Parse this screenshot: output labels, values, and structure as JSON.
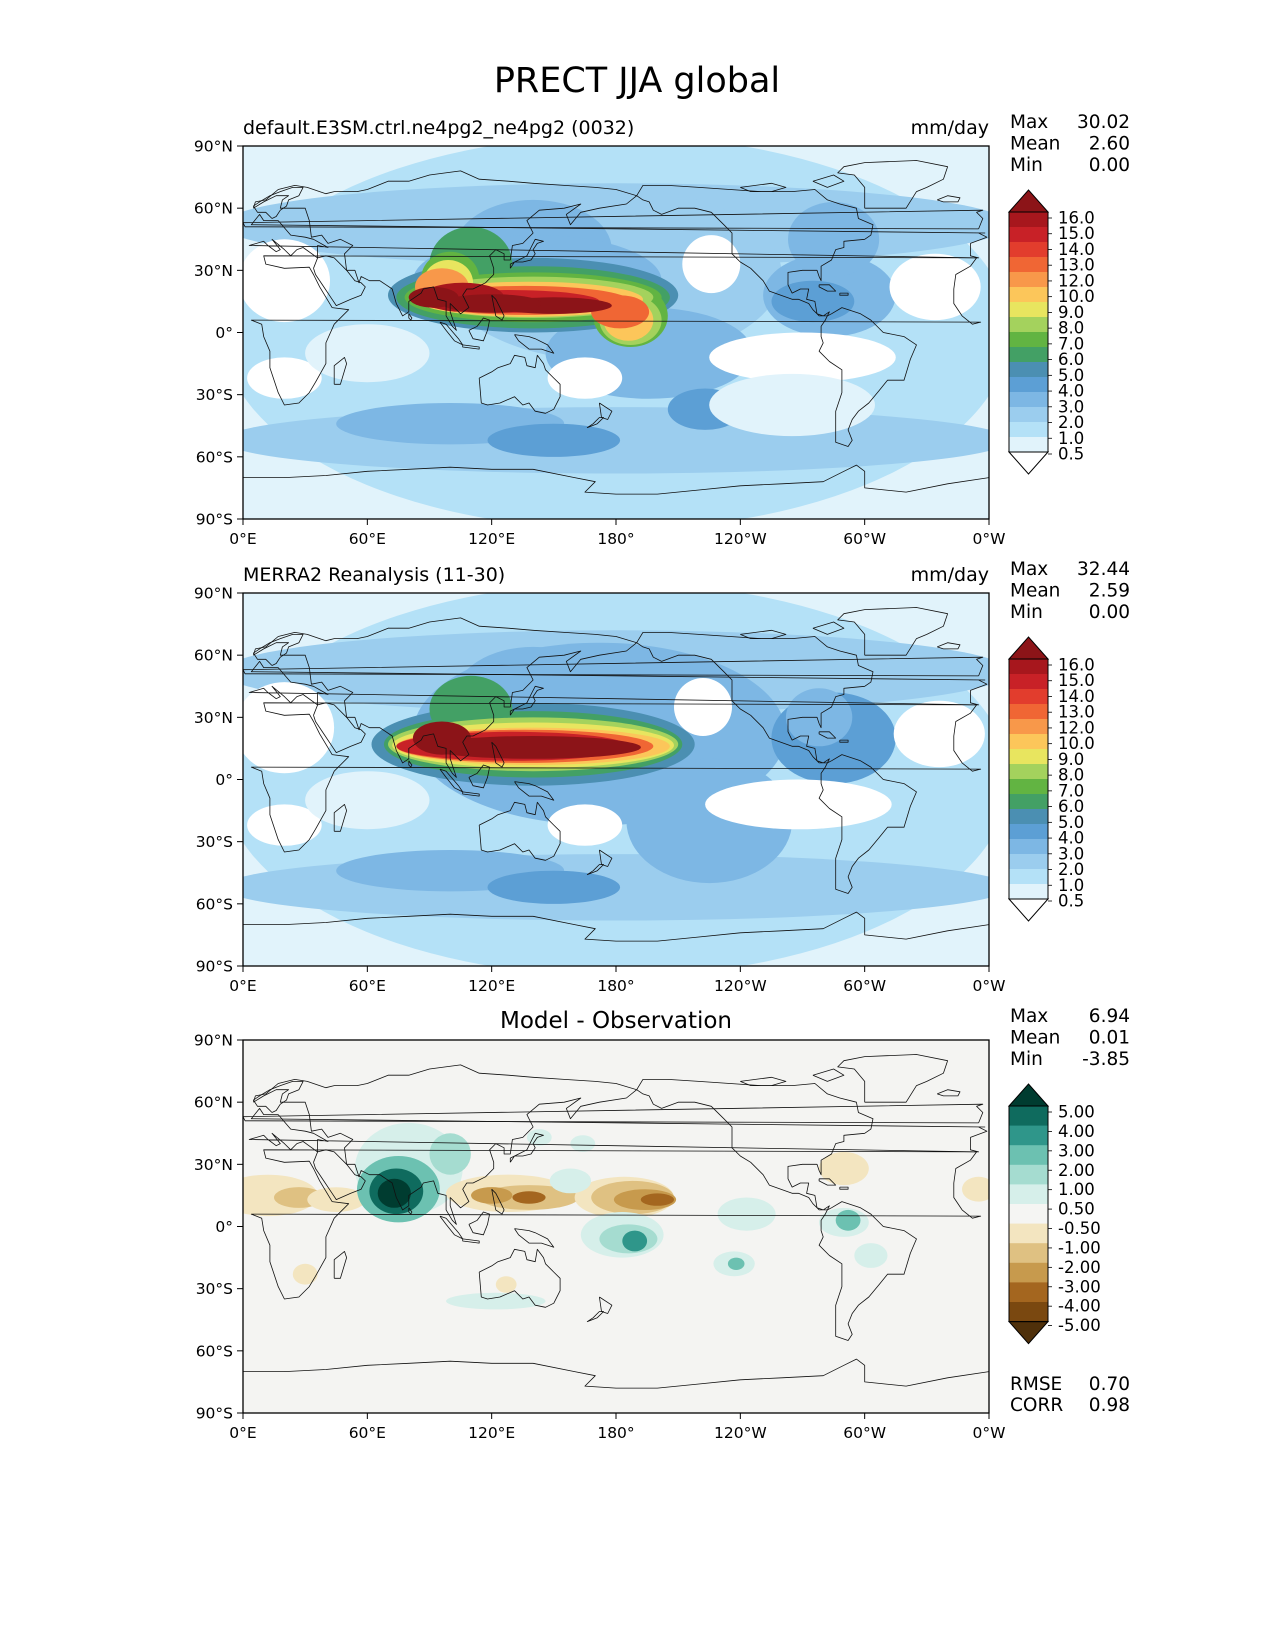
{
  "title": "PRECT JJA global",
  "x_ticks": [
    "0°E",
    "60°E",
    "120°E",
    "180°",
    "120°W",
    "60°W",
    "0°W"
  ],
  "y_ticks": [
    "90°N",
    "60°N",
    "30°N",
    "0°",
    "30°S",
    "60°S",
    "90°S"
  ],
  "colors": {
    "precip_levels": [
      "#ffffff",
      "#e1f3fb",
      "#b4e1f7",
      "#9bcdee",
      "#7db7e4",
      "#5c9fd5",
      "#4b8fb2",
      "#43a065",
      "#62b442",
      "#a4d25d",
      "#e8e55f",
      "#fcc65a",
      "#f8984a",
      "#f06634",
      "#e23d2d",
      "#c82127",
      "#a7171d",
      "#8c1418"
    ],
    "diff_levels": [
      "#4f300a",
      "#7a4810",
      "#a4661f",
      "#c79a4d",
      "#dfc182",
      "#f3e5c0",
      "#f5f5f3",
      "#d6efea",
      "#a5dcd0",
      "#6cc1b1",
      "#2f968a",
      "#0f6b5e",
      "#003c30"
    ],
    "land_line": "#111111",
    "diff_background": "#f4f4f2"
  },
  "panels": [
    {
      "id": "model",
      "title_left": "default.E3SM.ctrl.ne4pg2_ne4pg2 (0032)",
      "title_center": "",
      "units": "mm/day",
      "stats": [
        {
          "label": "Max",
          "value": "30.02"
        },
        {
          "label": "Mean",
          "value": "2.60"
        },
        {
          "label": "Min",
          "value": "0.00"
        }
      ],
      "colorbar_labels": [
        "16.0",
        "15.0",
        "14.0",
        "13.0",
        "12.0",
        "10.0",
        "9.0",
        "8.0",
        "7.0",
        "6.0",
        "5.0",
        "4.0",
        "3.0",
        "2.0",
        "1.0",
        "0.5"
      ]
    },
    {
      "id": "obs",
      "title_left": "MERRA2 Reanalysis (11-30)",
      "title_center": "",
      "units": "mm/day",
      "stats": [
        {
          "label": "Max",
          "value": "32.44"
        },
        {
          "label": "Mean",
          "value": "2.59"
        },
        {
          "label": "Min",
          "value": "0.00"
        }
      ],
      "colorbar_labels": [
        "16.0",
        "15.0",
        "14.0",
        "13.0",
        "12.0",
        "10.0",
        "9.0",
        "8.0",
        "7.0",
        "6.0",
        "5.0",
        "4.0",
        "3.0",
        "2.0",
        "1.0",
        "0.5"
      ]
    },
    {
      "id": "diff",
      "title_left": "",
      "title_center": "Model - Observation",
      "units": "",
      "stats": [
        {
          "label": "Max",
          "value": "6.94"
        },
        {
          "label": "Mean",
          "value": "0.01"
        },
        {
          "label": "Min",
          "value": "-3.85"
        }
      ],
      "colorbar_labels": [
        "5.00",
        "4.00",
        "3.00",
        "2.00",
        "1.00",
        "0.50",
        "-0.50",
        "-1.00",
        "-2.00",
        "-3.00",
        "-4.00",
        "-5.00"
      ],
      "metrics": [
        {
          "label": "RMSE",
          "value": "0.70"
        },
        {
          "label": "CORR",
          "value": "0.98"
        }
      ]
    }
  ]
}
